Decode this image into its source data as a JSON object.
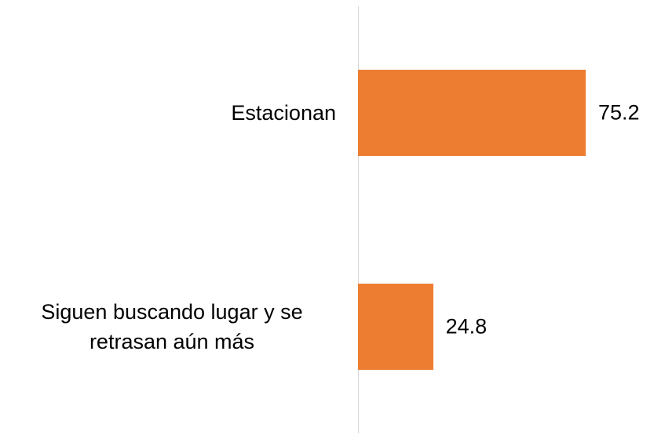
{
  "chart_data": {
    "type": "bar",
    "orientation": "horizontal",
    "categories": [
      "Estacionan",
      "Siguen buscando lugar y se retrasan aún más"
    ],
    "values": [
      75.2,
      24.8
    ],
    "color": "#ed7d31",
    "xlim": [
      0,
      97
    ]
  }
}
